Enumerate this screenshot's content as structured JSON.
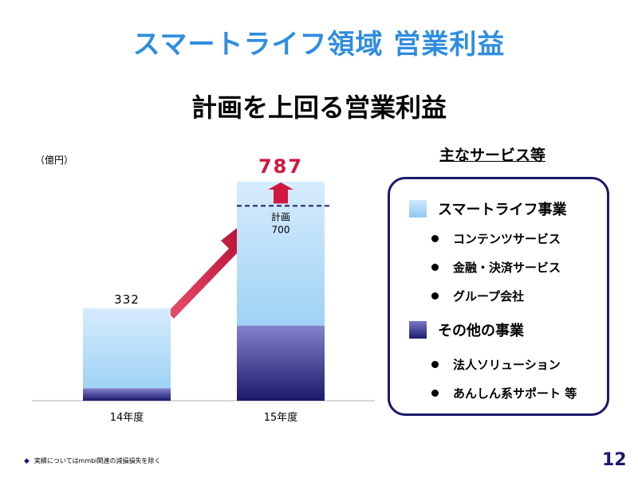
{
  "title": "スマートライフ領域 営業利益",
  "subtitle": "計画を上回る営業利益",
  "unit_label": "（億円）",
  "chart_data": {
    "type": "bar",
    "stacked": true,
    "categories": [
      "14年度",
      "15年度"
    ],
    "series": [
      {
        "name": "その他の事業",
        "values": [
          45,
          270
        ]
      },
      {
        "name": "スマートライフ事業",
        "values": [
          287,
          517
        ]
      }
    ],
    "totals": [
      332,
      787
    ],
    "plan": {
      "label": "計画",
      "value": 700
    },
    "ylim": [
      0,
      830
    ],
    "colors": {
      "light": "#a8d6f7",
      "dark": "#3a3890",
      "highlight": "#d0173f",
      "plan_line": "#1a1a6b"
    }
  },
  "legend": {
    "heading": "主なサービス等",
    "groups": [
      {
        "label": "スマートライフ事業",
        "swatch": "light",
        "items": [
          "コンテンツサービス",
          "金融・決済サービス",
          "グループ会社"
        ]
      },
      {
        "label": "その他の事業",
        "swatch": "dark",
        "items": [
          "法人ソリューション",
          "あんしん系サポート 等"
        ]
      }
    ]
  },
  "footnote": "実績についてはmmbi関連の減損損失を除く",
  "footnote_icon": "diamond-icon",
  "page_number": "12"
}
